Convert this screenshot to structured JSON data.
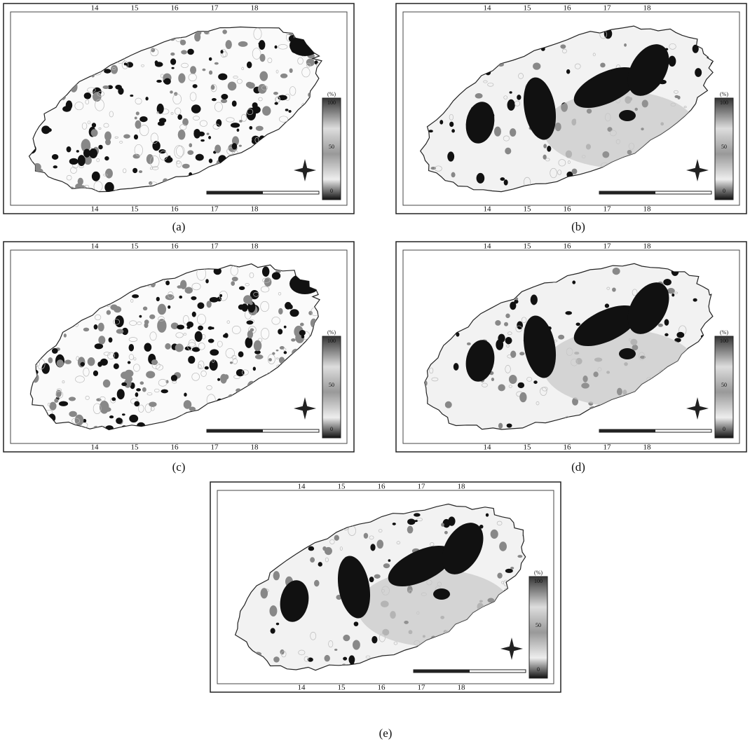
{
  "panels": [
    {
      "caption": "(a)"
    },
    {
      "caption": "(b)"
    },
    {
      "caption": "(c)"
    },
    {
      "caption": "(d)"
    },
    {
      "caption": "(e)"
    }
  ],
  "map_labels": {
    "top_ticks": [
      "14",
      "15",
      "16",
      "17",
      "18"
    ],
    "legend_unit": "(%)",
    "legend_values": [
      "100",
      "50",
      "0"
    ]
  }
}
